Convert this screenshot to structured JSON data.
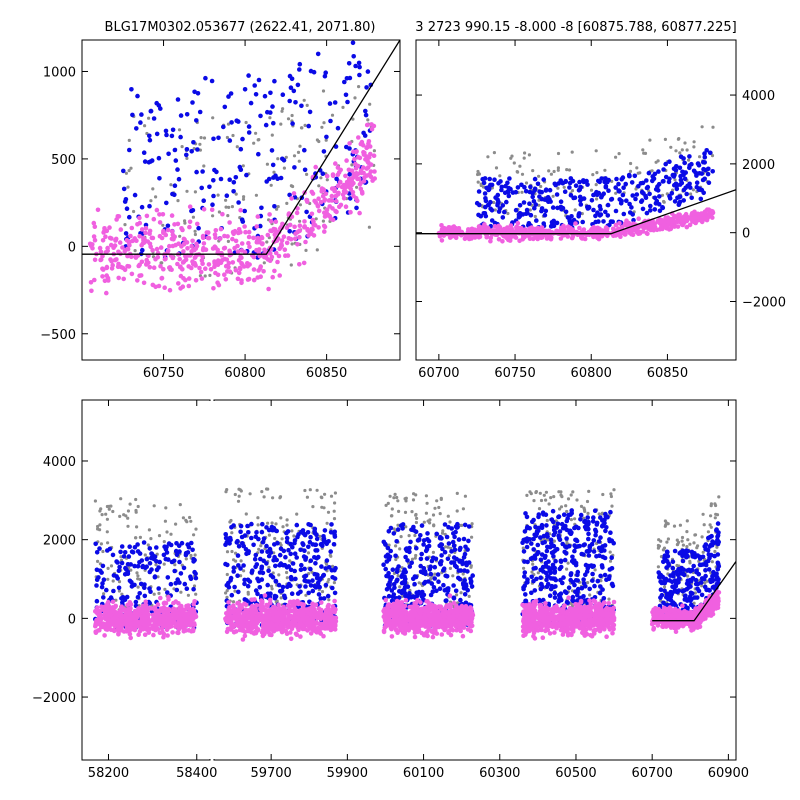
{
  "colors": {
    "gray": "#8c8c8c",
    "blue": "#0a0ae6",
    "pink": "#f060e0",
    "model": "#000000",
    "frame": "#000000"
  },
  "chart_data": [
    {
      "type": "scatter",
      "title": "BLG17M0302.053677 (2622.41, 2071.80)",
      "xlabel": "",
      "ylabel": "",
      "xlim": [
        60700,
        60895
      ],
      "ylim": [
        -650,
        1180
      ],
      "xticks": [
        60750,
        60800,
        60850
      ],
      "yticks": [
        -500,
        0,
        500,
        1000
      ],
      "yaxis_side": "left",
      "model_line": {
        "x": [
          60700,
          60813,
          60895
        ],
        "y": [
          -45,
          -45,
          1180
        ]
      },
      "clouds": [
        {
          "series": "gray",
          "x0": 60725,
          "x1": 60880,
          "trend": "ramp",
          "start": 60813,
          "base": 150,
          "slope": 4.0,
          "spread": 420,
          "count": 180
        },
        {
          "series": "blue",
          "x0": 60725,
          "x1": 60880,
          "trend": "ramp",
          "start": 60813,
          "base": 300,
          "slope": 5.0,
          "spread": 480,
          "count": 260
        },
        {
          "series": "pink",
          "x0": 60705,
          "x1": 60880,
          "trend": "ramp",
          "start": 60813,
          "base": -40,
          "slope": 8.5,
          "spread": 170,
          "count": 620
        }
      ]
    },
    {
      "type": "scatter",
      "title": "3 2723 990.15 -8.000 -8 [60875.788, 60877.225]",
      "xlabel": "",
      "ylabel": "",
      "xlim": [
        60685,
        60895
      ],
      "ylim": [
        -3700,
        5600
      ],
      "xticks": [
        60700,
        60750,
        60800,
        60850
      ],
      "yticks": [
        -2000,
        0,
        2000,
        4000
      ],
      "yaxis_side": "right",
      "model_line": {
        "x": [
          60685,
          60813,
          60895
        ],
        "y": [
          -30,
          -30,
          1250
        ]
      },
      "clouds": [
        {
          "series": "gray",
          "x0": 60725,
          "x1": 60880,
          "trend": "ramp",
          "start": 60813,
          "base": 1100,
          "slope": 12,
          "spread": 900,
          "count": 160
        },
        {
          "series": "blue",
          "x0": 60725,
          "x1": 60880,
          "trend": "ramp",
          "start": 60813,
          "base": 650,
          "slope": 14,
          "spread": 650,
          "count": 380
        },
        {
          "series": "pink",
          "x0": 60700,
          "x1": 60880,
          "trend": "ramp",
          "start": 60813,
          "base": 0,
          "slope": 8.0,
          "spread": 160,
          "count": 650
        }
      ]
    },
    {
      "type": "scatter",
      "title": "",
      "xlabel": "",
      "ylabel": "",
      "ylim": [
        -3600,
        5550
      ],
      "yticks": [
        -2000,
        0,
        2000,
        4000
      ],
      "yaxis_side": "left",
      "segments": [
        {
          "xlim": [
            58140,
            58430
          ],
          "xticks": [
            58200,
            58400
          ]
        },
        {
          "xlim": [
            59550,
            60920
          ],
          "xticks": [
            59700,
            59900,
            60100,
            60300,
            60500,
            60700,
            60900
          ]
        }
      ],
      "model_line": {
        "x": [
          60700,
          60810,
          61070
        ],
        "y": [
          -60,
          -60,
          3500
        ]
      },
      "clouds": [
        {
          "series": "gray",
          "x0": 58170,
          "x1": 58400,
          "trend": "flat",
          "base": 1200,
          "spread": 1300,
          "count": 130
        },
        {
          "series": "blue",
          "x0": 58170,
          "x1": 58400,
          "trend": "flat",
          "base": 500,
          "spread": 1000,
          "count": 220
        },
        {
          "series": "pink",
          "x0": 58170,
          "x1": 58400,
          "trend": "flat",
          "base": 0,
          "spread": 320,
          "count": 600
        },
        {
          "series": "gray",
          "x0": 59580,
          "x1": 59870,
          "trend": "flat",
          "base": 1300,
          "spread": 1400,
          "count": 170
        },
        {
          "series": "blue",
          "x0": 59580,
          "x1": 59870,
          "trend": "flat",
          "base": 700,
          "spread": 1200,
          "count": 360
        },
        {
          "series": "pink",
          "x0": 59580,
          "x1": 59870,
          "trend": "flat",
          "base": 0,
          "spread": 330,
          "count": 720
        },
        {
          "series": "gray",
          "x0": 59995,
          "x1": 60230,
          "trend": "flat",
          "base": 1200,
          "spread": 1400,
          "count": 160
        },
        {
          "series": "blue",
          "x0": 59995,
          "x1": 60230,
          "trend": "flat",
          "base": 700,
          "spread": 1200,
          "count": 340
        },
        {
          "series": "pink",
          "x0": 59995,
          "x1": 60230,
          "trend": "flat",
          "base": 0,
          "spread": 320,
          "count": 700
        },
        {
          "series": "gray",
          "x0": 60360,
          "x1": 60600,
          "trend": "flat",
          "base": 1300,
          "spread": 1400,
          "count": 160
        },
        {
          "series": "blue",
          "x0": 60360,
          "x1": 60600,
          "trend": "flat",
          "base": 900,
          "spread": 1300,
          "count": 400
        },
        {
          "series": "pink",
          "x0": 60360,
          "x1": 60600,
          "trend": "flat",
          "base": 0,
          "spread": 330,
          "count": 700
        },
        {
          "series": "gray",
          "x0": 60715,
          "x1": 60875,
          "trend": "ramp",
          "start": 60813,
          "base": 1100,
          "slope": 10,
          "spread": 1000,
          "count": 120
        },
        {
          "series": "blue",
          "x0": 60715,
          "x1": 60875,
          "trend": "ramp",
          "start": 60813,
          "base": 600,
          "slope": 12,
          "spread": 800,
          "count": 260
        },
        {
          "series": "pink",
          "x0": 60700,
          "x1": 60875,
          "trend": "ramp",
          "start": 60813,
          "base": 0,
          "slope": 8.0,
          "spread": 200,
          "count": 520
        }
      ]
    }
  ]
}
